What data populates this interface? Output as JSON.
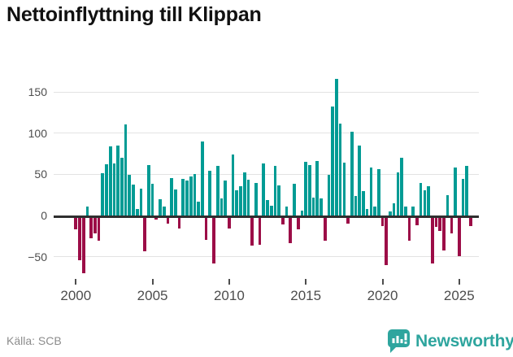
{
  "header": {
    "title": "Nettoinflyttning till Klippan"
  },
  "footer": {
    "source_label": "Källa: SCB",
    "brand": "Newsworthy",
    "logo_icon": "bar-chart-speech-bubble-icon"
  },
  "colors": {
    "positive": "#009B94",
    "negative": "#9C0D47",
    "grid": "#e3e3e3",
    "zero_line": "#2f2f2f",
    "axis_text": "#4d4d4d",
    "source_text": "#8c8c8c",
    "brand_teal": "#2EA59E",
    "title_text": "#111111"
  },
  "chart_data": {
    "type": "bar",
    "title": "Nettoinflyttning till Klippan",
    "xlabel": "",
    "ylabel": "",
    "ylim": [
      -80,
      175
    ],
    "grid": true,
    "legend": false,
    "y_ticks": [
      {
        "value": 150,
        "label": "150"
      },
      {
        "value": 100,
        "label": "100"
      },
      {
        "value": 50,
        "label": "50"
      },
      {
        "value": 0,
        "label": "0"
      },
      {
        "value": -50,
        "label": "−50"
      }
    ],
    "x_ticks": [
      {
        "year": 2000,
        "label": "2000"
      },
      {
        "year": 2005,
        "label": "2005"
      },
      {
        "year": 2010,
        "label": "2010"
      },
      {
        "year": 2015,
        "label": "2015"
      },
      {
        "year": 2020,
        "label": "2020"
      },
      {
        "year": 2025,
        "label": "2025"
      }
    ],
    "series": [
      {
        "q": "2000 Q1",
        "v": -14
      },
      {
        "q": "2000 Q2",
        "v": -52
      },
      {
        "q": "2000 Q3",
        "v": -68
      },
      {
        "q": "2000 Q4",
        "v": 11
      },
      {
        "q": "2001 Q1",
        "v": -25
      },
      {
        "q": "2001 Q2",
        "v": -19
      },
      {
        "q": "2001 Q3",
        "v": -28
      },
      {
        "q": "2001 Q4",
        "v": 51
      },
      {
        "q": "2002 Q1",
        "v": 62
      },
      {
        "q": "2002 Q2",
        "v": 84
      },
      {
        "q": "2002 Q3",
        "v": 63
      },
      {
        "q": "2002 Q4",
        "v": 85
      },
      {
        "q": "2003 Q1",
        "v": 70
      },
      {
        "q": "2003 Q2",
        "v": 111
      },
      {
        "q": "2003 Q3",
        "v": 49
      },
      {
        "q": "2003 Q4",
        "v": 38
      },
      {
        "q": "2004 Q1",
        "v": 8
      },
      {
        "q": "2004 Q2",
        "v": 33
      },
      {
        "q": "2004 Q3",
        "v": -41
      },
      {
        "q": "2004 Q4",
        "v": 61
      },
      {
        "q": "2005 Q1",
        "v": 39
      },
      {
        "q": "2005 Q2",
        "v": -2
      },
      {
        "q": "2005 Q3",
        "v": 20
      },
      {
        "q": "2005 Q4",
        "v": 11
      },
      {
        "q": "2006 Q1",
        "v": -7
      },
      {
        "q": "2006 Q2",
        "v": 45
      },
      {
        "q": "2006 Q3",
        "v": 32
      },
      {
        "q": "2006 Q4",
        "v": -13
      },
      {
        "q": "2007 Q1",
        "v": 44
      },
      {
        "q": "2007 Q2",
        "v": 42
      },
      {
        "q": "2007 Q3",
        "v": 47
      },
      {
        "q": "2007 Q4",
        "v": 50
      },
      {
        "q": "2008 Q1",
        "v": 17
      },
      {
        "q": "2008 Q2",
        "v": 90
      },
      {
        "q": "2008 Q3",
        "v": -27
      },
      {
        "q": "2008 Q4",
        "v": 54
      },
      {
        "q": "2009 Q1",
        "v": -56
      },
      {
        "q": "2009 Q2",
        "v": 60
      },
      {
        "q": "2009 Q3",
        "v": 21
      },
      {
        "q": "2009 Q4",
        "v": 42
      },
      {
        "q": "2010 Q1",
        "v": -13
      },
      {
        "q": "2010 Q2",
        "v": 74
      },
      {
        "q": "2010 Q3",
        "v": 31
      },
      {
        "q": "2010 Q4",
        "v": 36
      },
      {
        "q": "2011 Q1",
        "v": 52
      },
      {
        "q": "2011 Q2",
        "v": 43
      },
      {
        "q": "2011 Q3",
        "v": -34
      },
      {
        "q": "2011 Q4",
        "v": 40
      },
      {
        "q": "2012 Q1",
        "v": -33
      },
      {
        "q": "2012 Q2",
        "v": 63
      },
      {
        "q": "2012 Q3",
        "v": 19
      },
      {
        "q": "2012 Q4",
        "v": 12
      },
      {
        "q": "2013 Q1",
        "v": 60
      },
      {
        "q": "2013 Q2",
        "v": 37
      },
      {
        "q": "2013 Q3",
        "v": -8
      },
      {
        "q": "2013 Q4",
        "v": 11
      },
      {
        "q": "2014 Q1",
        "v": -31
      },
      {
        "q": "2014 Q2",
        "v": 39
      },
      {
        "q": "2014 Q3",
        "v": -14
      },
      {
        "q": "2014 Q4",
        "v": 6
      },
      {
        "q": "2015 Q1",
        "v": 65
      },
      {
        "q": "2015 Q2",
        "v": 61
      },
      {
        "q": "2015 Q3",
        "v": 22
      },
      {
        "q": "2015 Q4",
        "v": 66
      },
      {
        "q": "2016 Q1",
        "v": 21
      },
      {
        "q": "2016 Q2",
        "v": -28
      },
      {
        "q": "2016 Q3",
        "v": 49
      },
      {
        "q": "2016 Q4",
        "v": 132
      },
      {
        "q": "2017 Q1",
        "v": 166
      },
      {
        "q": "2017 Q2",
        "v": 112
      },
      {
        "q": "2017 Q3",
        "v": 64
      },
      {
        "q": "2017 Q4",
        "v": -7
      },
      {
        "q": "2018 Q1",
        "v": 102
      },
      {
        "q": "2018 Q2",
        "v": 24
      },
      {
        "q": "2018 Q3",
        "v": 85
      },
      {
        "q": "2018 Q4",
        "v": 30
      },
      {
        "q": "2019 Q1",
        "v": 8
      },
      {
        "q": "2019 Q2",
        "v": 58
      },
      {
        "q": "2019 Q3",
        "v": 11
      },
      {
        "q": "2019 Q4",
        "v": 56
      },
      {
        "q": "2020 Q1",
        "v": -10
      },
      {
        "q": "2020 Q2",
        "v": -58
      },
      {
        "q": "2020 Q3",
        "v": 5
      },
      {
        "q": "2020 Q4",
        "v": 15
      },
      {
        "q": "2021 Q1",
        "v": 52
      },
      {
        "q": "2021 Q2",
        "v": 70
      },
      {
        "q": "2021 Q3",
        "v": 11
      },
      {
        "q": "2021 Q4",
        "v": -28
      },
      {
        "q": "2022 Q1",
        "v": 11
      },
      {
        "q": "2022 Q2",
        "v": -9
      },
      {
        "q": "2022 Q3",
        "v": 40
      },
      {
        "q": "2022 Q4",
        "v": 31
      },
      {
        "q": "2023 Q1",
        "v": 36
      },
      {
        "q": "2023 Q2",
        "v": -56
      },
      {
        "q": "2023 Q3",
        "v": -11
      },
      {
        "q": "2023 Q4",
        "v": -16
      },
      {
        "q": "2024 Q1",
        "v": -40
      },
      {
        "q": "2024 Q2",
        "v": 25
      },
      {
        "q": "2024 Q3",
        "v": -19
      },
      {
        "q": "2024 Q4",
        "v": 58
      },
      {
        "q": "2025 Q1",
        "v": -47
      },
      {
        "q": "2025 Q2",
        "v": 44
      },
      {
        "q": "2025 Q3",
        "v": 60
      },
      {
        "q": "2025 Q4",
        "v": -10
      }
    ]
  }
}
